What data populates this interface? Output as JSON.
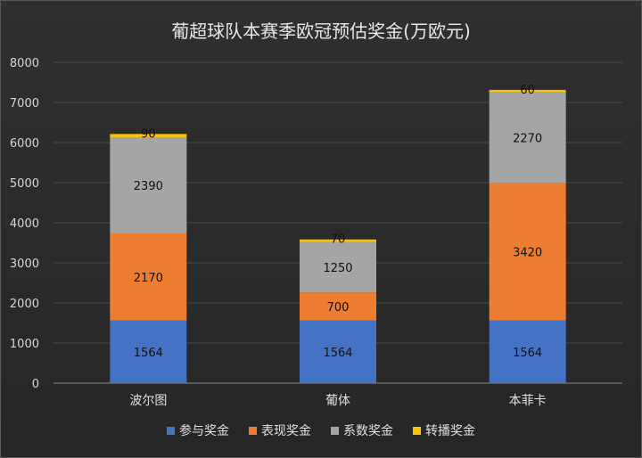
{
  "chart_data": {
    "type": "bar",
    "stacked": true,
    "title": "葡超球队本赛季欧冠预估奖金(万欧元)",
    "categories": [
      "波尔图",
      "葡体",
      "本菲卡"
    ],
    "series": [
      {
        "name": "参与奖金",
        "values": [
          1564,
          1564,
          1564
        ],
        "color": "#4472c4"
      },
      {
        "name": "表现奖金",
        "values": [
          2170,
          700,
          3420
        ],
        "color": "#ed7d31"
      },
      {
        "name": "系数奖金",
        "values": [
          2390,
          1250,
          2270
        ],
        "color": "#a5a5a5"
      },
      {
        "name": "转播奖金",
        "values": [
          90,
          70,
          60
        ],
        "color": "#ffc000"
      }
    ],
    "ylim": [
      0,
      8000
    ],
    "yticks": [
      0,
      1000,
      2000,
      3000,
      4000,
      5000,
      6000,
      7000,
      8000
    ],
    "grid": true,
    "legend_position": "bottom"
  }
}
